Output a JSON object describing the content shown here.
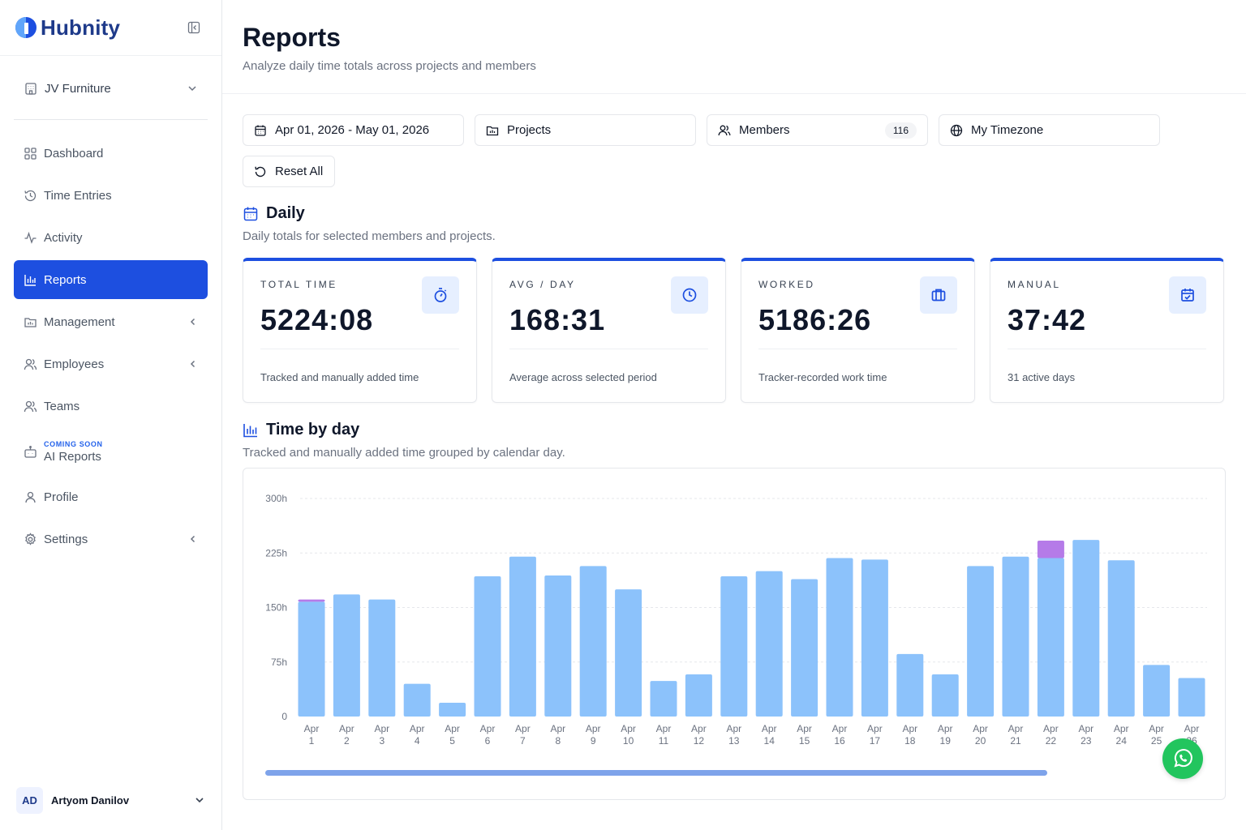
{
  "brand": {
    "name": "Hubnity"
  },
  "workspace": {
    "name": "JV Furniture"
  },
  "nav": [
    {
      "label": "Dashboard",
      "icon": "grid-icon"
    },
    {
      "label": "Time Entries",
      "icon": "history-icon"
    },
    {
      "label": "Activity",
      "icon": "activity-icon"
    },
    {
      "label": "Reports",
      "icon": "bar-chart-icon",
      "active": true
    },
    {
      "label": "Management",
      "icon": "folder-icon",
      "expandable": true
    },
    {
      "label": "Employees",
      "icon": "users-icon",
      "expandable": true
    },
    {
      "label": "Teams",
      "icon": "team-icon"
    },
    {
      "label": "AI Reports",
      "icon": "bot-icon",
      "tag": "COMING SOON"
    },
    {
      "label": "Profile",
      "icon": "user-icon"
    },
    {
      "label": "Settings",
      "icon": "gear-icon",
      "expandable": true
    }
  ],
  "user": {
    "initials": "AD",
    "name": "Artyom Danilov"
  },
  "header": {
    "title": "Reports",
    "subtitle": "Analyze daily time totals across projects and members"
  },
  "filters": {
    "date_range": "Apr 01, 2026 - May 01, 2026",
    "projects": "Projects",
    "members": "Members",
    "members_count": "116",
    "timezone": "My Timezone",
    "reset": "Reset All"
  },
  "daily": {
    "title": "Daily",
    "subtitle": "Daily totals for selected members and projects."
  },
  "cards": [
    {
      "label": "TOTAL TIME",
      "value": "5224:08",
      "note": "Tracked and manually added time",
      "icon": "stopwatch-icon"
    },
    {
      "label": "AVG / DAY",
      "value": "168:31",
      "note": "Average across selected period",
      "icon": "clock-icon"
    },
    {
      "label": "WORKED",
      "value": "5186:26",
      "note": "Tracker-recorded work time",
      "icon": "briefcase-icon"
    },
    {
      "label": "MANUAL",
      "value": "37:42",
      "note": "31 active days",
      "icon": "calendar-check-icon"
    }
  ],
  "time_by_day": {
    "title": "Time by day",
    "subtitle": "Tracked and manually added time grouped by calendar day."
  },
  "colors": {
    "accent": "#1d4fe0",
    "tracked": "#8cc2fb",
    "manual": "#b57be8"
  },
  "chart_data": {
    "type": "bar",
    "stacked": true,
    "y_ticks": [
      "0",
      "75h",
      "150h",
      "225h",
      "300h"
    ],
    "ylim": [
      0,
      300
    ],
    "categories": [
      [
        "Apr",
        "1"
      ],
      [
        "Apr",
        "2"
      ],
      [
        "Apr",
        "3"
      ],
      [
        "Apr",
        "4"
      ],
      [
        "Apr",
        "5"
      ],
      [
        "Apr",
        "6"
      ],
      [
        "Apr",
        "7"
      ],
      [
        "Apr",
        "8"
      ],
      [
        "Apr",
        "9"
      ],
      [
        "Apr",
        "10"
      ],
      [
        "Apr",
        "11"
      ],
      [
        "Apr",
        "12"
      ],
      [
        "Apr",
        "13"
      ],
      [
        "Apr",
        "14"
      ],
      [
        "Apr",
        "15"
      ],
      [
        "Apr",
        "16"
      ],
      [
        "Apr",
        "17"
      ],
      [
        "Apr",
        "18"
      ],
      [
        "Apr",
        "19"
      ],
      [
        "Apr",
        "20"
      ],
      [
        "Apr",
        "21"
      ],
      [
        "Apr",
        "22"
      ],
      [
        "Apr",
        "23"
      ],
      [
        "Apr",
        "24"
      ],
      [
        "Apr",
        "25"
      ],
      [
        "Apr",
        "26"
      ]
    ],
    "series": [
      {
        "key": "tracked",
        "values": [
          158,
          168,
          161,
          45,
          19,
          193,
          220,
          194,
          207,
          175,
          49,
          58,
          193,
          200,
          189,
          218,
          216,
          86,
          58,
          207,
          220,
          218,
          243,
          215,
          71,
          53
        ]
      },
      {
        "key": "manual",
        "values": [
          3,
          0,
          0,
          0,
          0,
          0,
          0,
          0,
          0,
          0,
          0,
          0,
          0,
          0,
          0,
          0,
          0,
          0,
          0,
          0,
          0,
          24,
          0,
          0,
          0,
          0
        ]
      }
    ],
    "grid": true
  }
}
